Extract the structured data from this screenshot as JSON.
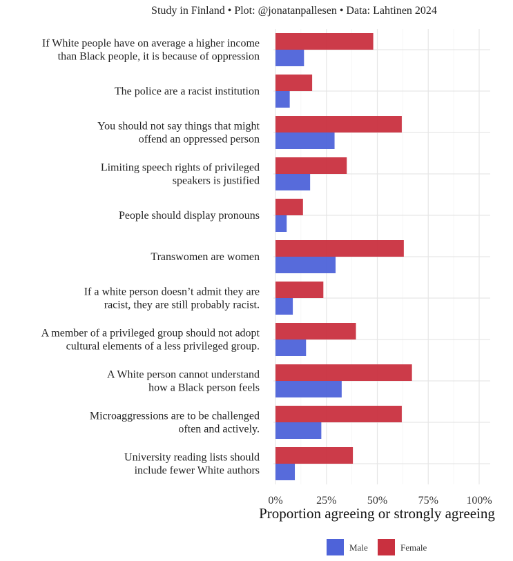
{
  "chart_data": {
    "type": "bar",
    "orientation": "horizontal",
    "title": "Study in Finland • Plot: @jonatanpallesen • Data: Lahtinen 2024",
    "xlabel": "Proportion agreeing or strongly agreeing",
    "ylabel": "",
    "xlim": [
      0,
      1.05
    ],
    "x_ticks": [
      0,
      0.25,
      0.5,
      0.75,
      1.0
    ],
    "x_tick_labels": [
      "0%",
      "25%",
      "50%",
      "75%",
      "100%"
    ],
    "grid": true,
    "legend_position": "bottom",
    "categories": [
      [
        "If White people have on average a higher income",
        "than Black people, it is because of oppression"
      ],
      [
        "The police are a racist institution"
      ],
      [
        "You should not say things that might",
        "offend an oppressed person"
      ],
      [
        "Limiting speech rights of privileged",
        "speakers is justified"
      ],
      [
        "People should display pronouns"
      ],
      [
        "Transwomen are women"
      ],
      [
        "If a white person doesn’t admit they are",
        "racist, they are still probably racist."
      ],
      [
        "A member of a privileged group should not adopt",
        "cultural elements of a less privileged group."
      ],
      [
        "A White person cannot understand",
        "how a Black person feels"
      ],
      [
        "Microaggressions are to be challenged",
        "often and actively."
      ],
      [
        "University reading lists should",
        "include fewer White authors"
      ]
    ],
    "series": [
      {
        "name": "Female",
        "color": "#c9303f",
        "values": [
          0.48,
          0.18,
          0.62,
          0.35,
          0.135,
          0.63,
          0.235,
          0.395,
          0.67,
          0.62,
          0.38
        ]
      },
      {
        "name": "Male",
        "color": "#4e63d9",
        "values": [
          0.14,
          0.07,
          0.29,
          0.17,
          0.055,
          0.295,
          0.085,
          0.15,
          0.325,
          0.225,
          0.095
        ]
      }
    ],
    "legend": [
      {
        "label": "Male",
        "color": "#4e63d9"
      },
      {
        "label": "Female",
        "color": "#c9303f"
      }
    ]
  }
}
